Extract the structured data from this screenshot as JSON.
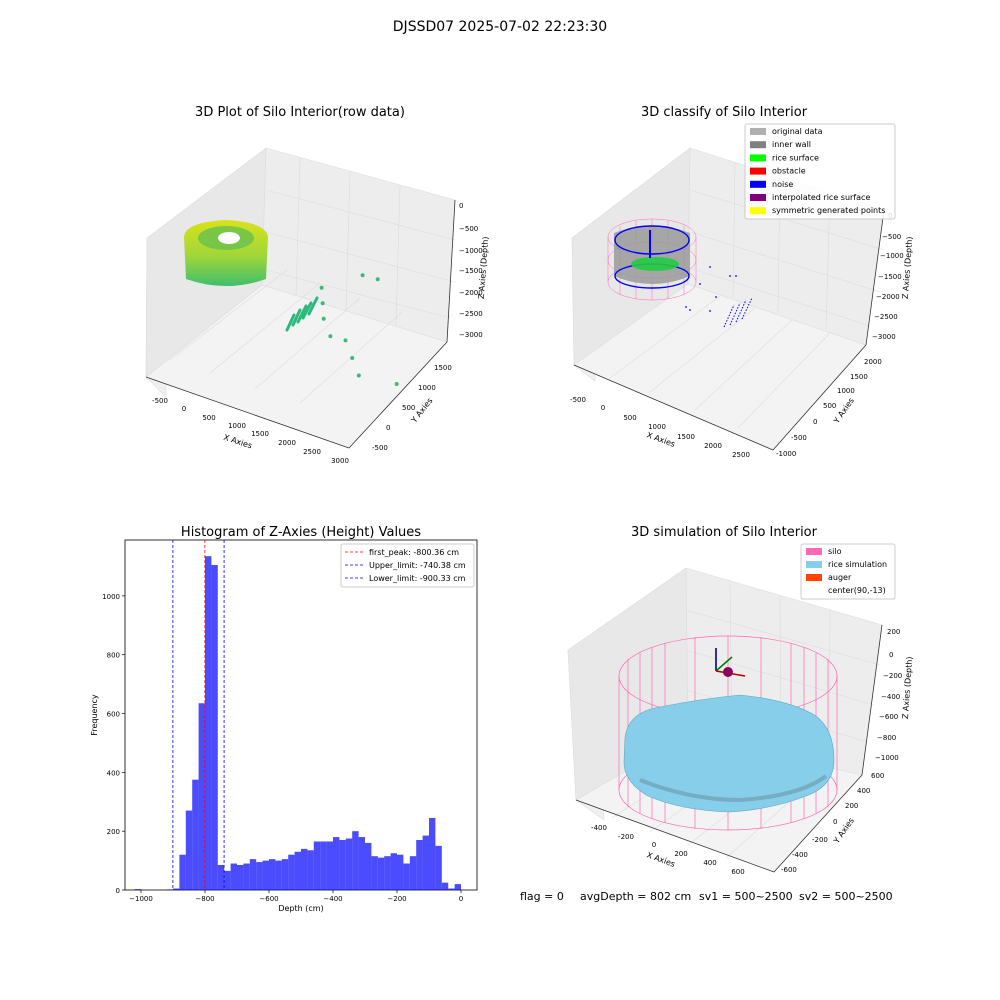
{
  "figure": {
    "suptitle": "DJSSD07 2025-07-02 22:23:30",
    "footer": {
      "flag": "flag = 0",
      "avg_depth": "avgDepth = 802 cm",
      "sv1": "sv1 = 500~2500",
      "sv2": "sv2 = 500~2500"
    }
  },
  "chart_data": [
    {
      "type": "scatter",
      "projection": "3d",
      "title": "3D Plot of Silo Interior(row data)",
      "xlabel": "X Axies",
      "ylabel": "Y Axies",
      "zlabel": "Z Axies (Depth)",
      "xticks": [
        "-500",
        "0",
        "500",
        "1000",
        "1500",
        "2000",
        "2500",
        "3000"
      ],
      "yticks": [
        "-500",
        "0",
        "500",
        "1000",
        "1500"
      ],
      "zticks": [
        "0",
        "−500",
        "−1000",
        "−1500",
        "−2000",
        "−2500",
        "−3000"
      ],
      "xlim": [
        -600,
        3000
      ],
      "ylim": [
        -700,
        1700
      ],
      "zlim": [
        -3100,
        0
      ],
      "colormap": "viridis",
      "series": [
        {
          "name": "",
          "points": [
            {
              "x": 1500,
              "y": 600,
              "z": -1500
            },
            {
              "x": 1600,
              "y": 500,
              "z": -1700
            },
            {
              "x": 1700,
              "y": 400,
              "z": -1900
            },
            {
              "x": 1900,
              "y": 300,
              "z": -2100
            },
            {
              "x": 2100,
              "y": 400,
              "z": -2200
            },
            {
              "x": 2300,
              "y": 300,
              "z": -2400
            },
            {
              "x": 2500,
              "y": 200,
              "z": -2600
            },
            {
              "x": 2900,
              "y": 600,
              "z": -3000
            },
            {
              "x": 2000,
              "y": 900,
              "z": -1300
            },
            {
              "x": 2200,
              "y": 1000,
              "z": -1400
            }
          ]
        }
      ]
    },
    {
      "type": "scatter",
      "projection": "3d",
      "title": "3D classify of Silo Interior",
      "xlabel": "X Axies",
      "ylabel": "Y Axies",
      "zlabel": "Z Axies (Depth)",
      "xticks": [
        "-500",
        "0",
        "500",
        "1000",
        "1500",
        "2000",
        "2500"
      ],
      "yticks": [
        "-1000",
        "-500",
        "0",
        "500",
        "1000",
        "1500",
        "2000"
      ],
      "zticks": [
        "0",
        "−500",
        "−1000",
        "−1500",
        "−2000",
        "−2500",
        "−3000"
      ],
      "xlim": [
        -600,
        2600
      ],
      "ylim": [
        -1100,
        2100
      ],
      "zlim": [
        -3100,
        0
      ],
      "legend": {
        "placement": "upper right",
        "items": [
          {
            "label": "original data",
            "color": "#b0b0b0"
          },
          {
            "label": "inner wall",
            "color": "#808080"
          },
          {
            "label": "rice surface",
            "color": "#00ff00"
          },
          {
            "label": "obstacle",
            "color": "#ff0000"
          },
          {
            "label": "noise",
            "color": "#0000ff"
          },
          {
            "label": "interpolated rice surface",
            "color": "#800080"
          },
          {
            "label": "symmetric generated points",
            "color": "#ffff00"
          }
        ]
      }
    },
    {
      "type": "bar",
      "title": "Histogram of Z-Axies (Height) Values",
      "xlabel": "Depth (cm)",
      "ylabel": "Frequency",
      "xlim": [
        -1050,
        50
      ],
      "ylim": [
        0,
        1190
      ],
      "xticks": [
        -1000,
        -800,
        -600,
        -400,
        -200,
        0
      ],
      "yticks": [
        0,
        200,
        400,
        600,
        800,
        1000
      ],
      "bar_color": "#0000ff",
      "bin_width": 20,
      "bins": [
        {
          "x": -1010,
          "y": 3
        },
        {
          "x": -990,
          "y": 0
        },
        {
          "x": -970,
          "y": 0
        },
        {
          "x": -950,
          "y": 0
        },
        {
          "x": -930,
          "y": 0
        },
        {
          "x": -910,
          "y": 2
        },
        {
          "x": -890,
          "y": 5
        },
        {
          "x": -870,
          "y": 120
        },
        {
          "x": -850,
          "y": 270
        },
        {
          "x": -830,
          "y": 375
        },
        {
          "x": -810,
          "y": 635
        },
        {
          "x": -790,
          "y": 1135
        },
        {
          "x": -770,
          "y": 1105
        },
        {
          "x": -750,
          "y": 85
        },
        {
          "x": -730,
          "y": 65
        },
        {
          "x": -710,
          "y": 90
        },
        {
          "x": -690,
          "y": 85
        },
        {
          "x": -670,
          "y": 90
        },
        {
          "x": -650,
          "y": 105
        },
        {
          "x": -630,
          "y": 95
        },
        {
          "x": -610,
          "y": 100
        },
        {
          "x": -590,
          "y": 105
        },
        {
          "x": -570,
          "y": 100
        },
        {
          "x": -550,
          "y": 105
        },
        {
          "x": -530,
          "y": 120
        },
        {
          "x": -510,
          "y": 130
        },
        {
          "x": -490,
          "y": 140
        },
        {
          "x": -470,
          "y": 135
        },
        {
          "x": -450,
          "y": 165
        },
        {
          "x": -430,
          "y": 165
        },
        {
          "x": -410,
          "y": 165
        },
        {
          "x": -390,
          "y": 180
        },
        {
          "x": -370,
          "y": 170
        },
        {
          "x": -350,
          "y": 175
        },
        {
          "x": -330,
          "y": 200
        },
        {
          "x": -310,
          "y": 180
        },
        {
          "x": -290,
          "y": 160
        },
        {
          "x": -270,
          "y": 115
        },
        {
          "x": -250,
          "y": 110
        },
        {
          "x": -230,
          "y": 115
        },
        {
          "x": -210,
          "y": 125
        },
        {
          "x": -190,
          "y": 120
        },
        {
          "x": -170,
          "y": 90
        },
        {
          "x": -150,
          "y": 115
        },
        {
          "x": -130,
          "y": 170
        },
        {
          "x": -110,
          "y": 185
        },
        {
          "x": -90,
          "y": 245
        },
        {
          "x": -70,
          "y": 150
        },
        {
          "x": -50,
          "y": 25
        },
        {
          "x": -30,
          "y": 5
        },
        {
          "x": -10,
          "y": 20
        }
      ],
      "vlines": [
        {
          "label": "first_peak: -800.36 cm",
          "x": -800.36,
          "color": "#ff0000",
          "style": "dashed"
        },
        {
          "label": "Upper_limit: -740.38 cm",
          "x": -740.38,
          "color": "#0000ff",
          "style": "dashed"
        },
        {
          "label": "Lower_limit: -900.33 cm",
          "x": -900.33,
          "color": "#0000ff",
          "style": "dashed"
        }
      ],
      "legend_placement": "upper right"
    },
    {
      "type": "surface",
      "projection": "3d",
      "title": "3D simulation of Silo Interior",
      "xlabel": "X Axies",
      "ylabel": "Y Axies",
      "zlabel": "Z Axies (Depth)",
      "xticks": [
        "-400",
        "-200",
        "0",
        "200",
        "400",
        "600"
      ],
      "yticks": [
        "-600",
        "-400",
        "-200",
        "0",
        "200",
        "400",
        "600"
      ],
      "zticks": [
        "200",
        "0",
        "−200",
        "−400",
        "−600",
        "−800",
        "−1000"
      ],
      "xlim": [
        -600,
        700
      ],
      "ylim": [
        -700,
        700
      ],
      "zlim": [
        -1000,
        250
      ],
      "legend": {
        "placement": "upper right",
        "items": [
          {
            "label": "silo",
            "color": "#ff69b4"
          },
          {
            "label": "rice simulation",
            "color": "#87ceeb"
          },
          {
            "label": "auger",
            "color": "#ff4500"
          },
          {
            "label": "center(90,-13)",
            "color": "#ffffff"
          }
        ]
      }
    }
  ]
}
